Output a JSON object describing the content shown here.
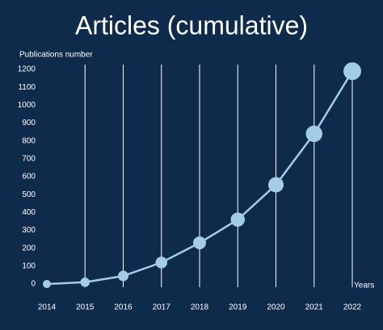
{
  "chart_data": {
    "type": "line",
    "title": "Articles (cumulative)",
    "y_label": "Publications number",
    "x_label": "Years",
    "categories": [
      "2014",
      "2015",
      "2016",
      "2017",
      "2018",
      "2019",
      "2020",
      "2021",
      "2022"
    ],
    "series": [
      {
        "name": "Articles",
        "color": "#a3cde6",
        "values": [
          0,
          10,
          45,
          120,
          230,
          360,
          555,
          840,
          1190
        ]
      }
    ],
    "ylim": [
      0,
      1200
    ],
    "yticks": [
      0,
      100,
      200,
      300,
      400,
      500,
      600,
      700,
      800,
      900,
      1000,
      1100,
      1200
    ],
    "grid": "x",
    "background": "#0f2b4c"
  }
}
